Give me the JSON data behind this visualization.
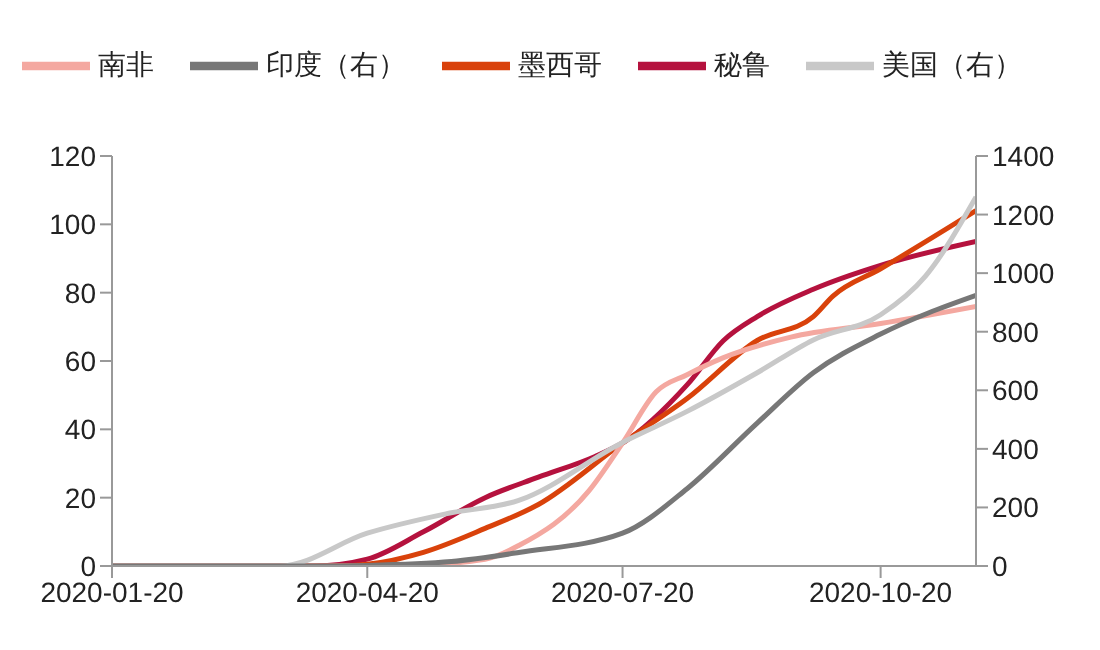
{
  "chart_data": {
    "type": "line",
    "xlim": [
      "2020-01-20",
      "2020-11-23"
    ],
    "xticks": [
      "2020-01-20",
      "2020-04-20",
      "2020-07-20",
      "2020-10-20"
    ],
    "ylim": [
      0,
      120
    ],
    "yticks": [
      0,
      20,
      40,
      60,
      80,
      100,
      120
    ],
    "y2lim": [
      0,
      1400
    ],
    "y2ticks": [
      0,
      200,
      400,
      600,
      800,
      1000,
      1200,
      1400
    ],
    "grid": false,
    "legend": "top",
    "marker": "none",
    "line_style": "solid",
    "series": [
      {
        "name": "秘鲁",
        "color": "#b5123e",
        "x": [
          "2020-01-20",
          "2020-04-01",
          "2020-04-20",
          "2020-05-10",
          "2020-06-01",
          "2020-06-20",
          "2020-07-10",
          "2020-07-20",
          "2020-08-12",
          "2020-08-25",
          "2020-09-06",
          "2020-09-26",
          "2020-10-20",
          "2020-11-23"
        ],
        "values": [
          0,
          0,
          2,
          10,
          20,
          26,
          32,
          36,
          53,
          66,
          73,
          81,
          88,
          95
        ]
      },
      {
        "name": "墨西哥",
        "color": "#d9420b",
        "x": [
          "2020-01-20",
          "2020-04-10",
          "2020-04-20",
          "2020-05-10",
          "2020-06-01",
          "2020-06-20",
          "2020-07-20",
          "2020-08-12",
          "2020-09-06",
          "2020-09-26",
          "2020-10-03",
          "2020-10-20",
          "2020-11-23"
        ],
        "values": [
          0,
          0,
          0.5,
          4,
          11,
          18,
          36,
          49,
          66,
          73,
          79,
          87,
          104
        ]
      },
      {
        "name": "南非",
        "color": "#f4a8a0",
        "x": [
          "2020-01-20",
          "2020-05-01",
          "2020-06-01",
          "2020-06-13",
          "2020-07-08",
          "2020-07-20",
          "2020-08-01",
          "2020-08-12",
          "2020-08-25",
          "2020-09-18",
          "2020-10-20",
          "2020-11-23"
        ],
        "values": [
          0,
          0,
          2,
          6,
          22,
          36,
          51,
          56,
          61,
          67,
          71,
          76
        ]
      },
      {
        "name": "美国（右）",
        "color": "#c8c8c8",
        "axis": "y2",
        "x": [
          "2020-01-20",
          "2020-03-20",
          "2020-04-20",
          "2020-05-18",
          "2020-06-13",
          "2020-07-20",
          "2020-08-12",
          "2020-09-06",
          "2020-09-26",
          "2020-10-20",
          "2020-11-05",
          "2020-11-23"
        ],
        "values": [
          0,
          0,
          112,
          178,
          224,
          422,
          528,
          660,
          772,
          858,
          990,
          1260
        ]
      },
      {
        "name": "印度（右）",
        "color": "#777777",
        "axis": "y2",
        "x": [
          "2020-01-20",
          "2020-04-01",
          "2020-04-20",
          "2020-05-20",
          "2020-06-13",
          "2020-07-20",
          "2020-08-12",
          "2020-09-06",
          "2020-09-26",
          "2020-10-20",
          "2020-11-23"
        ],
        "values": [
          0,
          0,
          2,
          15,
          46,
          112,
          264,
          488,
          660,
          792,
          924
        ]
      }
    ]
  }
}
